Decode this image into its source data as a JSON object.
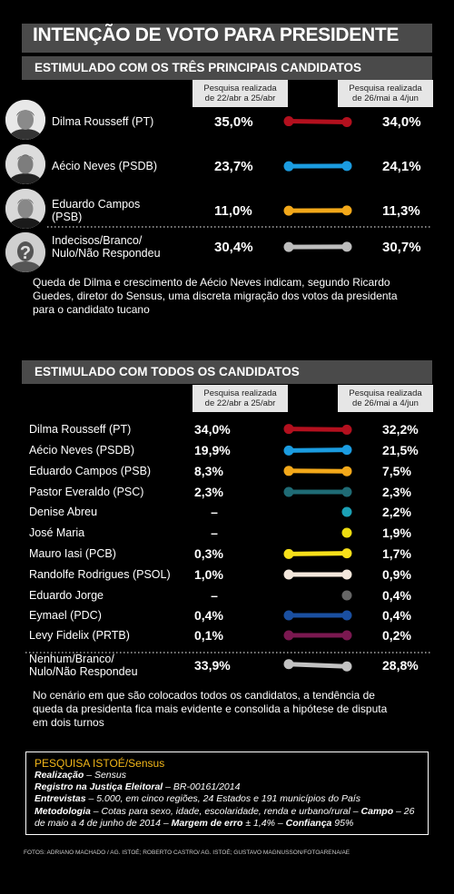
{
  "title": "INTENÇÃO DE VOTO PARA PRESIDENTE",
  "section1": {
    "title": "ESTIMULADO COM OS TRÊS PRINCIPAIS CANDIDATOS",
    "hdr_left": [
      "Pesquisa realizada",
      "de 22/abr a 25/abr"
    ],
    "hdr_right": [
      "Pesquisa realizada",
      "de 26/mai a 4/jun"
    ],
    "note": "Queda de Dilma e crescimento de Aécio Neves indicam, segundo Ricardo Guedes, diretor do Sensus, uma discreta migração dos votos da presidenta para o candidato tucano"
  },
  "section2": {
    "title": "ESTIMULADO COM TODOS OS CANDIDATOS",
    "hdr_left": [
      "Pesquisa realizada",
      "de 22/abr a 25/abr"
    ],
    "hdr_right": [
      "Pesquisa realizada",
      "de 26/mai a 4/jun"
    ],
    "note": "No cenário em que são colocados todos os candidatos, a tendência de queda da presidenta fica mais evidente e consolida a hipótese de disputa em dois turnos"
  },
  "chart_data": [
    {
      "type": "line",
      "x": [
        "22/abr a 25/abr",
        "26/mai a 4/jun"
      ],
      "series": [
        {
          "name": "Dilma Rousseff (PT)",
          "labels": [
            "Dilma Rousseff (PT)"
          ],
          "values": [
            35.0,
            34.0
          ],
          "display": [
            "35,0%",
            "34,0%"
          ],
          "color": "#b3101e",
          "avatar": "dilma-photo"
        },
        {
          "name": "Aécio Neves (PSDB)",
          "labels": [
            "Aécio Neves (PSDB)"
          ],
          "values": [
            23.7,
            24.1
          ],
          "display": [
            "23,7%",
            "24,1%"
          ],
          "color": "#1b9ce0",
          "avatar": "aecio-photo"
        },
        {
          "name": "Eduardo Campos (PSB)",
          "labels": [
            "Eduardo Campos",
            "(PSB)"
          ],
          "values": [
            11.0,
            11.3
          ],
          "display": [
            "11,0%",
            "11,3%"
          ],
          "color": "#f2a81a",
          "avatar": "campos-photo"
        },
        {
          "name": "Indecisos/Branco/Nulo/Não Respondeu",
          "labels": [
            "Indecisos/Branco/",
            "Nulo/Não Respondeu"
          ],
          "values": [
            30.4,
            30.7
          ],
          "display": [
            "30,4%",
            "30,7%"
          ],
          "color": "#bdbdbd",
          "avatar": "unknown-question-icon"
        }
      ]
    },
    {
      "type": "line",
      "x": [
        "22/abr a 25/abr",
        "26/mai a 4/jun"
      ],
      "series": [
        {
          "name": "Dilma Rousseff (PT)",
          "labels": [
            "Dilma Rousseff (PT)"
          ],
          "values": [
            34.0,
            32.2
          ],
          "display": [
            "34,0%",
            "32,2%"
          ],
          "color": "#b3101e"
        },
        {
          "name": "Aécio Neves (PSDB)",
          "labels": [
            "Aécio Neves (PSDB)"
          ],
          "values": [
            19.9,
            21.5
          ],
          "display": [
            "19,9%",
            "21,5%"
          ],
          "color": "#1b9ce0"
        },
        {
          "name": "Eduardo Campos (PSB)",
          "labels": [
            "Eduardo Campos (PSB)"
          ],
          "values": [
            8.3,
            7.5
          ],
          "display": [
            "8,3%",
            "7,5%"
          ],
          "color": "#f2a81a"
        },
        {
          "name": "Pastor Everaldo (PSC)",
          "labels": [
            "Pastor Everaldo (PSC)"
          ],
          "values": [
            2.3,
            2.3
          ],
          "display": [
            "2,3%",
            "2,3%"
          ],
          "color": "#1f6b75"
        },
        {
          "name": "Denise Abreu",
          "labels": [
            "Denise Abreu"
          ],
          "values": [
            null,
            2.2
          ],
          "display": [
            "–",
            "2,2%"
          ],
          "color": "#1ba0b5"
        },
        {
          "name": "José Maria",
          "labels": [
            "José Maria"
          ],
          "values": [
            null,
            1.9
          ],
          "display": [
            "–",
            "1,9%"
          ],
          "color": "#eddc10"
        },
        {
          "name": "Mauro Iasi (PCB)",
          "labels": [
            "Mauro Iasi (PCB)"
          ],
          "values": [
            0.3,
            1.7
          ],
          "display": [
            "0,3%",
            "1,7%"
          ],
          "color": "#f7e01a"
        },
        {
          "name": "Randolfe Rodrigues (PSOL)",
          "labels": [
            "Randolfe Rodrigues (PSOL)"
          ],
          "values": [
            1.0,
            0.9
          ],
          "display": [
            "1,0%",
            "0,9%"
          ],
          "color": "#f3e7dc"
        },
        {
          "name": "Eduardo Jorge",
          "labels": [
            "Eduardo Jorge"
          ],
          "values": [
            null,
            0.4
          ],
          "display": [
            "–",
            "0,4%"
          ],
          "color": "#666666"
        },
        {
          "name": "Eymael (PDC)",
          "labels": [
            "Eymael (PDC)"
          ],
          "values": [
            0.4,
            0.4
          ],
          "display": [
            "0,4%",
            "0,4%"
          ],
          "color": "#1a4fa0"
        },
        {
          "name": "Levy Fidelix (PRTB)",
          "labels": [
            "Levy Fidelix (PRTB)"
          ],
          "values": [
            0.1,
            0.2
          ],
          "display": [
            "0,1%",
            "0,2%"
          ],
          "color": "#7a1850"
        },
        {
          "name": "Nenhum/Branco/Nulo/Não Respondeu",
          "labels": [
            "Nenhum/Branco/",
            "Nulo/Não Respondeu"
          ],
          "values": [
            33.9,
            28.8
          ],
          "display": [
            "33,9%",
            "28,8%"
          ],
          "color": "#c2c2c2"
        }
      ]
    }
  ],
  "pesquisa": {
    "title_bold": "PESQUISA ISTOÉ",
    "title_rest": "/Sensus",
    "lines": [
      {
        "label": "Realização",
        "text": " – Sensus"
      },
      {
        "label": "Registro na Justiça Eleitoral",
        "text": " – BR-00161/2014"
      },
      {
        "label": "Entrevistas",
        "text": " – 5.000, em cinco regiões, 24 Estados e 191 municípios do País"
      },
      {
        "label": "Metodologia",
        "text": " – Cotas para sexo, idade, escolaridade, renda e urbano/rural – "
      },
      {
        "label": "Campo",
        "text": " – 26 de maio a 4 de junho de 2014 – "
      },
      {
        "label": "Margem de erro",
        "text": " ± 1,4% – "
      },
      {
        "label": "Confiança",
        "text": " 95%"
      }
    ]
  },
  "credits": "FOTOS: ADRIANO MACHADO / AG. ISTOÉ; ROBERTO CASTRO/ AG. ISTOÉ; GUSTAVO MAGNUSSON/FOTOARENA/AE"
}
